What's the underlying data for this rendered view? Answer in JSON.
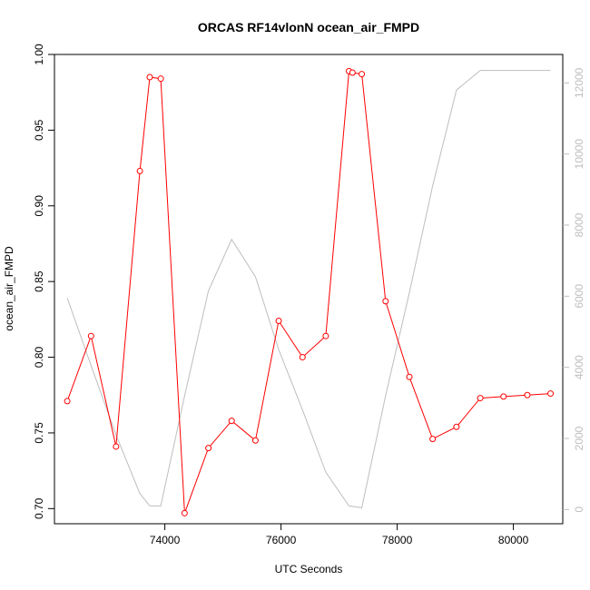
{
  "chart_data": {
    "type": "line",
    "title": "ORCAS RF14vlonN ocean_air_FMPD",
    "xlabel": "UTC Seconds",
    "ylabel": "ocean_air_FMPD",
    "xlim": [
      72100,
      80850
    ],
    "ylim": [
      0.69,
      1.0
    ],
    "y2lim": [
      -400,
      12800
    ],
    "x_ticks": [
      "74000",
      "76000",
      "78000",
      "80000"
    ],
    "y_ticks": [
      "0.70",
      "0.75",
      "0.80",
      "0.85",
      "0.90",
      "0.95",
      "1.00"
    ],
    "y2_ticks": [
      "0",
      "2000",
      "4000",
      "6000",
      "8000",
      "10000",
      "12000"
    ],
    "series": [
      {
        "color": "#ff0000",
        "axis": "left",
        "markers": "open-circle",
        "x": [
          72320,
          72730,
          73160,
          73570,
          73740,
          73930,
          74340,
          74750,
          75150,
          75560,
          75960,
          76370,
          76770,
          77170,
          77230,
          77390,
          77800,
          78210,
          78610,
          79020,
          79430,
          79830,
          80240,
          80640
        ],
        "y": [
          0.771,
          0.814,
          0.741,
          0.923,
          0.985,
          0.984,
          0.697,
          0.74,
          0.758,
          0.745,
          0.824,
          0.8,
          0.814,
          0.989,
          0.988,
          0.987,
          0.837,
          0.787,
          0.746,
          0.754,
          0.773,
          0.774,
          0.775,
          0.776
        ]
      },
      {
        "color": "#bebebe",
        "axis": "right",
        "markers": "none",
        "x": [
          72320,
          72730,
          73160,
          73570,
          73740,
          73930,
          74340,
          74750,
          75150,
          75560,
          75960,
          76370,
          76770,
          77170,
          77390,
          77800,
          78210,
          78610,
          79020,
          79430,
          79830,
          80240,
          80640
        ],
        "y": [
          5950,
          4050,
          2100,
          450,
          100,
          100,
          3200,
          6150,
          7600,
          6550,
          4500,
          2800,
          1050,
          100,
          50,
          3200,
          6100,
          9100,
          11800,
          12350,
          12350,
          12350,
          12350
        ]
      }
    ]
  }
}
